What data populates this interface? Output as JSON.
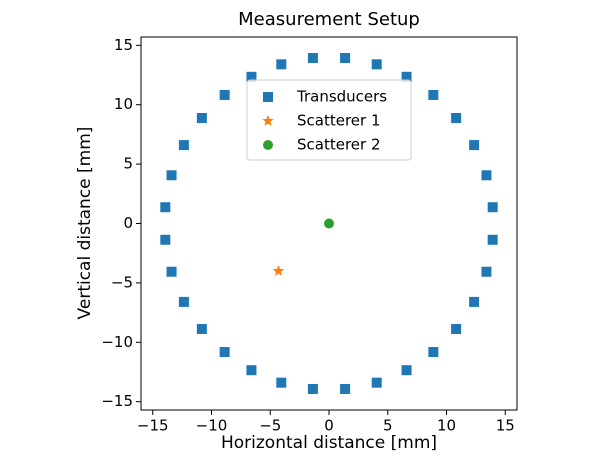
{
  "chart_data": {
    "type": "scatter",
    "title": "Measurement Setup",
    "x_label": "Horizontal distance [mm]",
    "y_label": "Vertical distance [mm]",
    "xlim": [
      -16,
      16
    ],
    "ylim": [
      -15.7,
      15.7
    ],
    "xticks": [
      {
        "value": -15,
        "label": "−15"
      },
      {
        "value": -10,
        "label": "−10"
      },
      {
        "value": -5,
        "label": "−5"
      },
      0,
      5,
      10,
      15
    ],
    "yticks": [
      {
        "value": -15,
        "label": "−15"
      },
      {
        "value": -10,
        "label": "−10"
      },
      {
        "value": -5,
        "label": "−5"
      },
      0,
      5,
      10,
      15
    ],
    "legend": "upper center",
    "series": [
      {
        "name": "Transducers",
        "color": "#1f77b4",
        "marker": "square",
        "x": [
          13.93,
          13.4,
          12.35,
          10.82,
          8.88,
          6.6,
          4.06,
          1.37,
          -1.37,
          -4.06,
          -6.6,
          -8.88,
          -10.82,
          -12.35,
          -13.4,
          -13.93,
          -13.93,
          -13.4,
          -12.35,
          -10.82,
          -8.88,
          -6.6,
          -4.06,
          -1.37,
          1.37,
          4.06,
          6.6,
          8.88,
          10.82,
          12.35,
          13.4,
          13.93
        ],
        "y": [
          1.37,
          4.06,
          6.6,
          8.88,
          10.82,
          12.35,
          13.4,
          13.93,
          13.93,
          13.4,
          12.35,
          10.82,
          8.88,
          6.6,
          4.06,
          1.37,
          -1.37,
          -4.06,
          -6.6,
          -8.88,
          -10.82,
          -12.35,
          -13.4,
          -13.93,
          -13.93,
          -13.4,
          -12.35,
          -10.82,
          -8.88,
          -6.6,
          -4.06,
          -1.37
        ]
      },
      {
        "name": "Scatterer 1",
        "color": "#ff7f0e",
        "marker": "star",
        "x": [
          -4.3
        ],
        "y": [
          -4.0
        ]
      },
      {
        "name": "Scatterer 2",
        "color": "#2ca02c",
        "marker": "circle",
        "x": [
          0
        ],
        "y": [
          0
        ]
      }
    ]
  }
}
